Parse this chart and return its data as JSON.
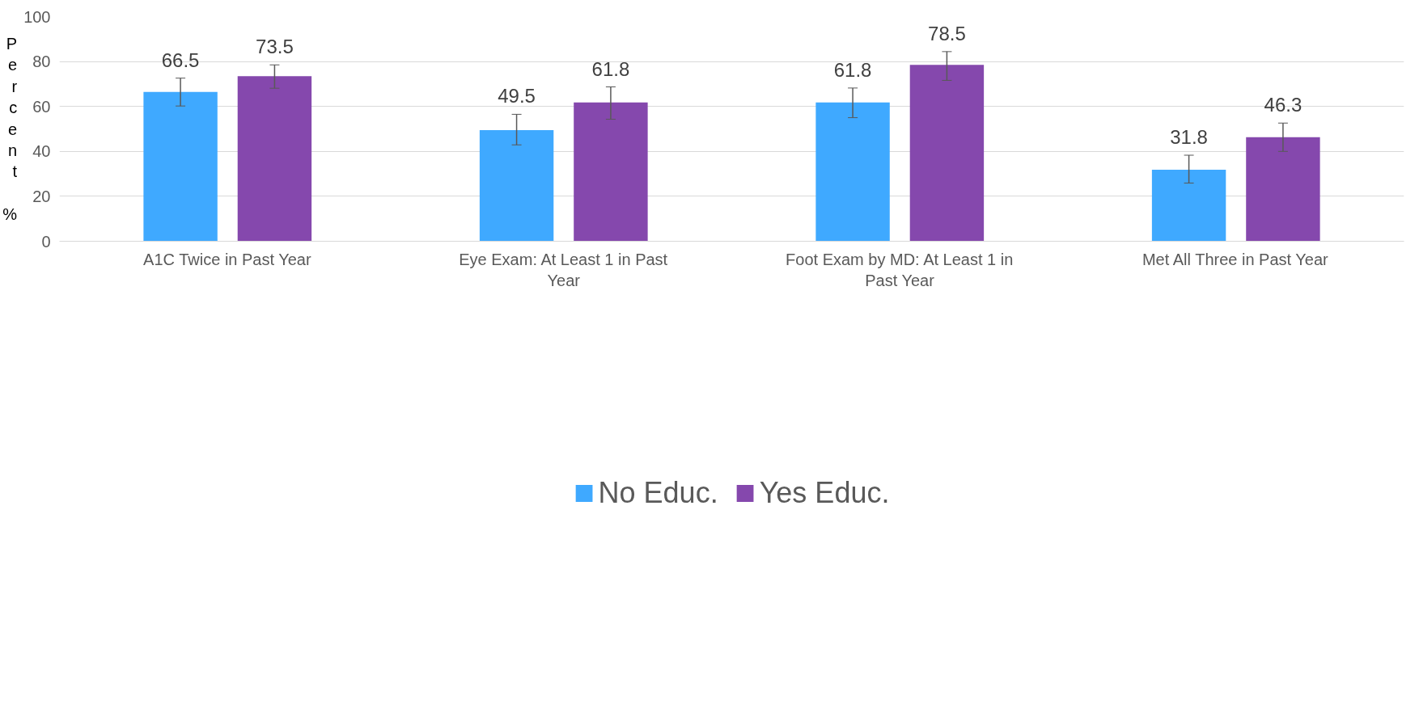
{
  "chart_data": {
    "type": "bar",
    "ylabel": "Percent %",
    "categories": [
      "A1C Twice in Past Year",
      "Eye Exam: At Least 1 in Past Year",
      "Foot Exam by MD: At Least 1 in Past Year",
      "Met All Three in Past Year"
    ],
    "series": [
      {
        "name": "No Educ.",
        "color": "#3fa9ff",
        "values": [
          66.5,
          49.5,
          61.8,
          31.8
        ],
        "errors": [
          [
            60.2,
            72.6
          ],
          [
            42.9,
            56.5
          ],
          [
            55.0,
            68.2
          ],
          [
            25.9,
            38.3
          ]
        ]
      },
      {
        "name": "Yes Educ.",
        "color": "#8548ad",
        "values": [
          73.5,
          61.8,
          78.5,
          46.3
        ],
        "errors": [
          [
            68.1,
            78.5
          ],
          [
            54.3,
            68.7
          ],
          [
            71.6,
            84.4
          ],
          [
            40.0,
            52.6
          ]
        ]
      }
    ],
    "ylim": [
      0,
      100
    ],
    "yticks": [
      0,
      20,
      40,
      60,
      80,
      100
    ],
    "grid": "y",
    "legend": "bottom",
    "data_labels": true
  }
}
